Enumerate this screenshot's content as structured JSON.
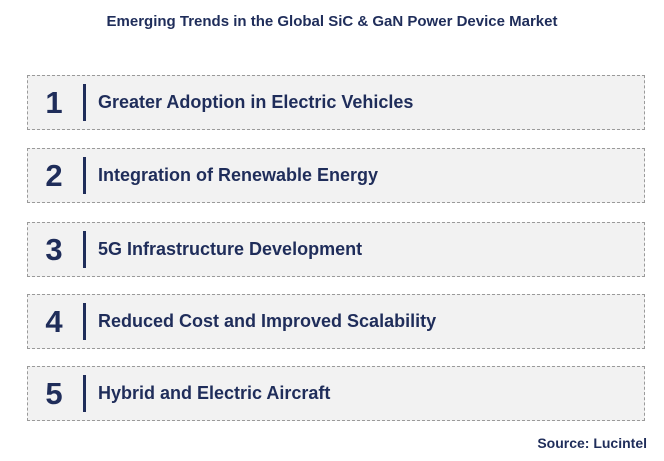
{
  "title": "Emerging Trends in the Global SiC & GaN Power Device Market",
  "trends": [
    {
      "number": "1",
      "label": "Greater Adoption in Electric Vehicles"
    },
    {
      "number": "2",
      "label": "Integration of Renewable Energy"
    },
    {
      "number": "3",
      "label": "5G Infrastructure Development"
    },
    {
      "number": "4",
      "label": "Reduced Cost and Improved Scalability"
    },
    {
      "number": "5",
      "label": "Hybrid and Electric Aircraft"
    }
  ],
  "source": "Source: Lucintel",
  "colors": {
    "text": "#1f2d5a",
    "box_background": "#f2f2f2",
    "box_border": "#9a9a9a"
  }
}
